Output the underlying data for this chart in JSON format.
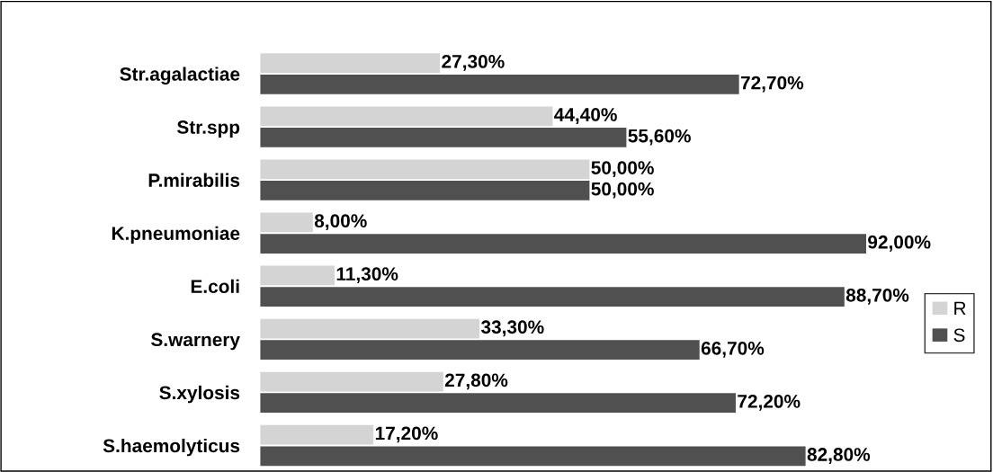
{
  "chart_data": {
    "type": "bar",
    "orientation": "horizontal",
    "categories": [
      "Str.agalactiae",
      "Str.spp",
      "P.mirabilis",
      "K.pneumoniae",
      "E.coli",
      "S.warnery",
      "S.xylosis",
      "S.haemolyticus"
    ],
    "series": [
      {
        "name": "R",
        "color": "#d4d4d4",
        "values": [
          27.3,
          44.4,
          50.0,
          8.0,
          11.3,
          33.3,
          27.8,
          17.2
        ],
        "value_labels": [
          "27,30%",
          "44,40%",
          "50,00%",
          "8,00%",
          "11,30%",
          "33,30%",
          "27,80%",
          "17,20%"
        ]
      },
      {
        "name": "S",
        "color": "#505050",
        "values": [
          72.7,
          55.6,
          50.0,
          92.0,
          88.7,
          66.7,
          72.2,
          82.8
        ],
        "value_labels": [
          "72,70%",
          "55,60%",
          "50,00%",
          "92,00%",
          "88,70%",
          "66,70%",
          "72,20%",
          "82,80%"
        ]
      }
    ],
    "legend": "right",
    "grid": false,
    "tick_labels": "y"
  }
}
